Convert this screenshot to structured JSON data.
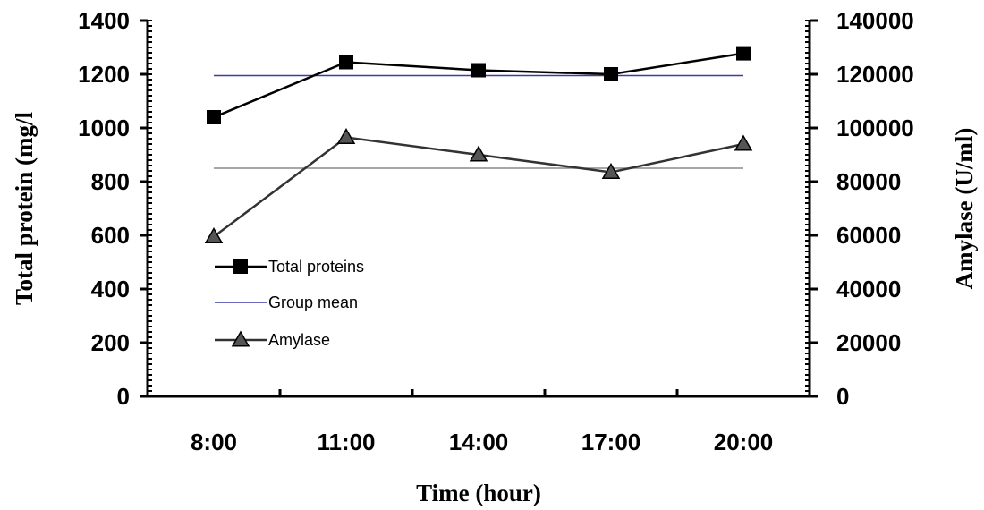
{
  "chart_data": {
    "type": "line",
    "categories": [
      "8:00",
      "11:00",
      "14:00",
      "17:00",
      "20:00"
    ],
    "xlabel": "Time (hour)",
    "ylabel": "Total protein (mg/l",
    "y2label": "Amylase (U/ml)",
    "ylim": [
      0,
      1400
    ],
    "y2lim": [
      0,
      140000
    ],
    "yticks": [
      0,
      200,
      400,
      600,
      800,
      1000,
      1200,
      1400
    ],
    "y2ticks": [
      0,
      20000,
      40000,
      60000,
      80000,
      100000,
      120000,
      140000
    ],
    "grid": false,
    "legend_position": "center-left",
    "series": [
      {
        "name": "Total proteins",
        "axis": "left",
        "values": [
          1040,
          1245,
          1215,
          1200,
          1278
        ],
        "marker": "square",
        "color": "#000000"
      },
      {
        "name": "Amylase",
        "axis": "right",
        "values": [
          59500,
          96500,
          90000,
          83500,
          94000
        ],
        "marker": "triangle",
        "color": "#333333"
      }
    ],
    "reference_lines": [
      {
        "name": "Group mean",
        "axis": "left",
        "value": 1195,
        "color": "#3a3aa8"
      },
      {
        "axis": "left",
        "value": 850,
        "color": "#8a8a8a"
      }
    ],
    "legend": {
      "entries": [
        "Total proteins",
        "Group mean",
        "Amylase"
      ]
    }
  }
}
